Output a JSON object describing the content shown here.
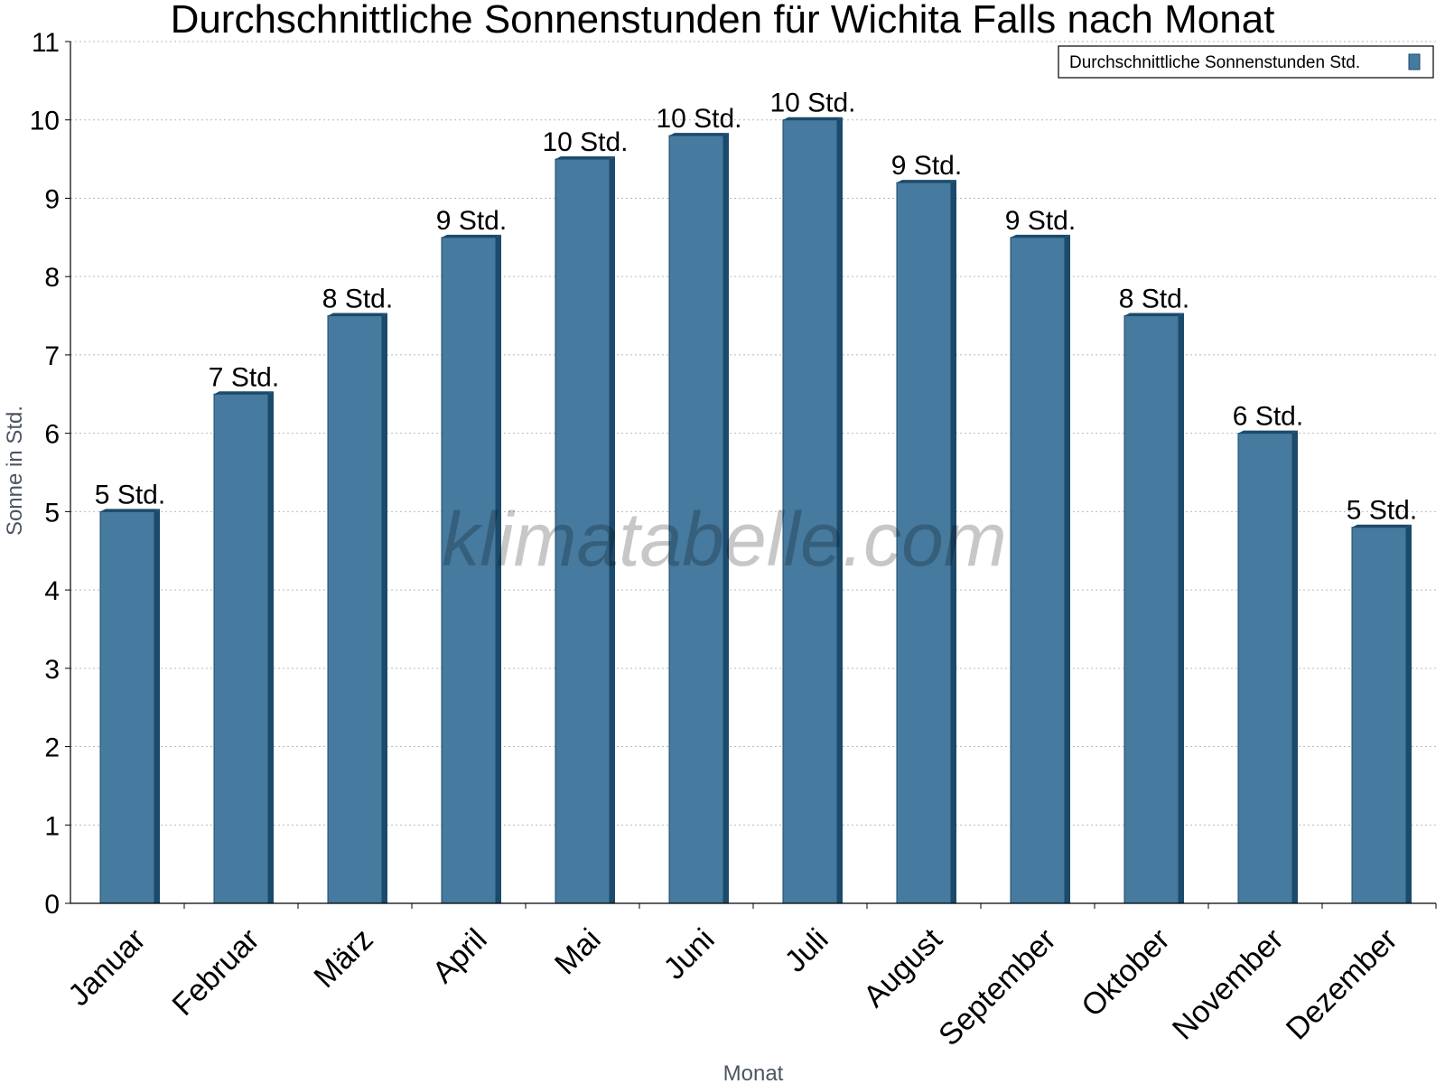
{
  "chart_data": {
    "type": "bar",
    "title": "Durchschnittliche Sonnenstunden für Wichita Falls nach Monat",
    "xlabel": "Monat",
    "ylabel": "Sonne in Std.",
    "ylim": [
      0,
      11
    ],
    "yticks": [
      0,
      1,
      2,
      3,
      4,
      5,
      6,
      7,
      8,
      9,
      10,
      11
    ],
    "grid": true,
    "legend_position": "top-right",
    "watermark": "klimatabelle.com",
    "categories": [
      "Januar",
      "Februar",
      "März",
      "April",
      "Mai",
      "Juni",
      "Juli",
      "August",
      "September",
      "Oktober",
      "November",
      "Dezember"
    ],
    "series": [
      {
        "name": "Durchschnittliche Sonnenstunden Std.",
        "color": "#467a9e",
        "values": [
          5.0,
          6.5,
          7.5,
          8.5,
          9.5,
          9.8,
          10.0,
          9.2,
          8.5,
          7.5,
          6.0,
          4.8
        ],
        "labels": [
          "5 Std.",
          "7 Std.",
          "8 Std.",
          "9 Std.",
          "10 Std.",
          "10 Std.",
          "10 Std.",
          "9 Std.",
          "9 Std.",
          "8 Std.",
          "6 Std.",
          "5 Std."
        ]
      }
    ]
  }
}
